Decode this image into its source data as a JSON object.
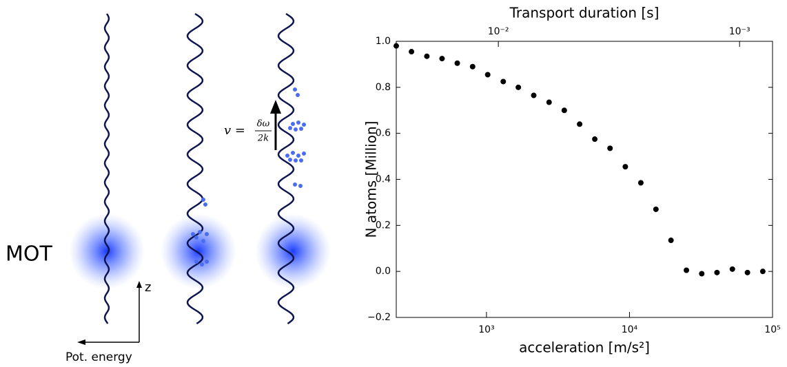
{
  "diagram": {
    "mot_label": "MOT",
    "z_label": "z",
    "energy_label": "Pot. energy",
    "formula": {
      "lhs": "v =",
      "numerator": "δω",
      "denominator": "2k"
    }
  },
  "chart_data": {
    "type": "scatter",
    "xlabel": "acceleration  [m/s²]",
    "ylabel": "N atoms [Million]",
    "x2label": "Transport duration [s]",
    "xscale": "log",
    "x2scale": "log",
    "color": "#000000",
    "grid": false,
    "xlim": [
      234,
      100000
    ],
    "xticks": [
      {
        "value": 1000,
        "label": "10³"
      },
      {
        "value": 10000,
        "label": "10⁴"
      },
      {
        "value": 100000,
        "label": "10⁵"
      }
    ],
    "x2lim": [
      0.0265,
      0.00073
    ],
    "x2ticks": [
      {
        "value": 0.01,
        "label": "10⁻²"
      },
      {
        "value": 0.001,
        "label": "10⁻³"
      }
    ],
    "ylim": [
      -0.2,
      1.0
    ],
    "yticks": [
      {
        "value": -0.2,
        "label": "−0.2"
      },
      {
        "value": 0,
        "label": "0.0"
      },
      0.2,
      0.4,
      0.6,
      0.8,
      {
        "value": 1.0,
        "label": "1.0"
      }
    ],
    "x": [
      234,
      299,
      383,
      489,
      625,
      800,
      1020,
      1310,
      1670,
      2140,
      2740,
      3500,
      4480,
      5720,
      7310,
      9350,
      12000,
      15300,
      19500,
      25000,
      32000,
      40900,
      52400,
      66800,
      85500
    ],
    "values": [
      0.98,
      0.955,
      0.935,
      0.925,
      0.905,
      0.89,
      0.855,
      0.825,
      0.8,
      0.765,
      0.735,
      0.7,
      0.64,
      0.575,
      0.535,
      0.455,
      0.385,
      0.27,
      0.135,
      0.005,
      -0.01,
      -0.005,
      0.01,
      -0.005,
      0.0
    ]
  }
}
